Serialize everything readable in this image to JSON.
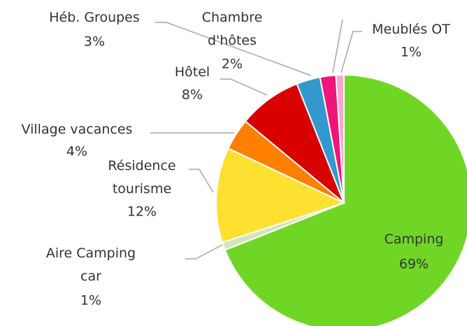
{
  "chart_data": {
    "type": "pie",
    "categories": [
      "Camping",
      "Aire Camping car",
      "Résidence tourisme",
      "Village vacances",
      "Hôtel",
      "Héb. Groupes",
      "Chambre d'hôtes",
      "Meublés OT"
    ],
    "values": [
      69,
      1,
      12,
      4,
      8,
      3,
      2,
      1
    ],
    "value_labels": [
      "69%",
      "1%",
      "12%",
      "4%",
      "8%",
      "3%",
      "2%",
      "1%"
    ],
    "colors": [
      "#6fd626",
      "#d3e6b5",
      "#fde030",
      "#ff7f00",
      "#d90000",
      "#3399cc",
      "#f0157a",
      "#f7a8c8"
    ]
  }
}
